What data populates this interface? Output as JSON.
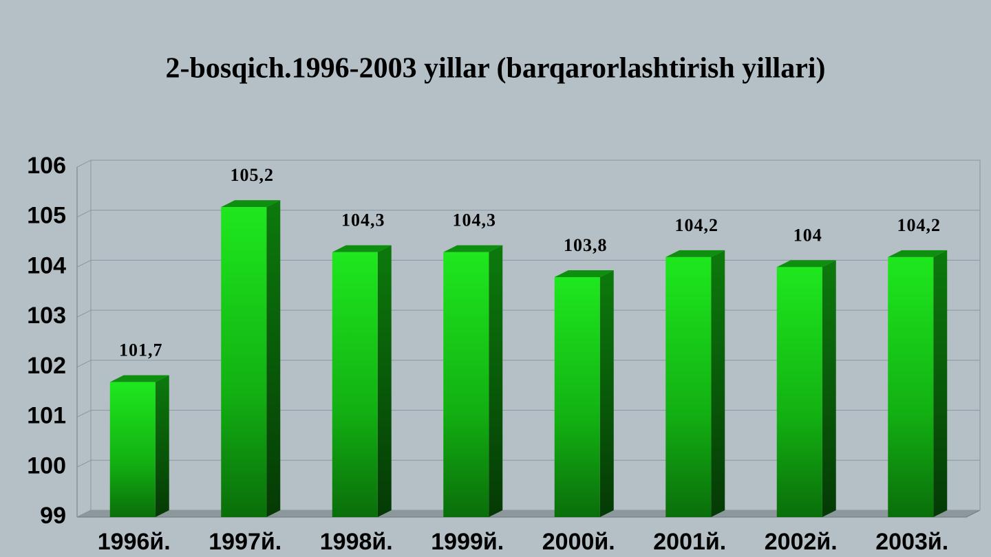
{
  "chart_data": {
    "type": "bar3d",
    "title": "2-bosqich.1996-2003 yillar (barqarorlashtirish  yillari)",
    "categories": [
      "1996й.",
      "1997й.",
      "1998й.",
      "1999й.",
      "2000й.",
      "2001й.",
      "2002й.",
      "2003й."
    ],
    "values": [
      101.7,
      105.2,
      104.3,
      104.3,
      103.8,
      104.2,
      104,
      104.2
    ],
    "value_labels": [
      "101,7",
      "105,2",
      "104,3",
      "104,3",
      "103,8",
      "104,2",
      "104",
      "104,2"
    ],
    "color": "#19d419",
    "ylim": [
      99,
      106
    ],
    "yticks": [
      99,
      100,
      101,
      102,
      103,
      104,
      105,
      106
    ],
    "grid": true
  }
}
